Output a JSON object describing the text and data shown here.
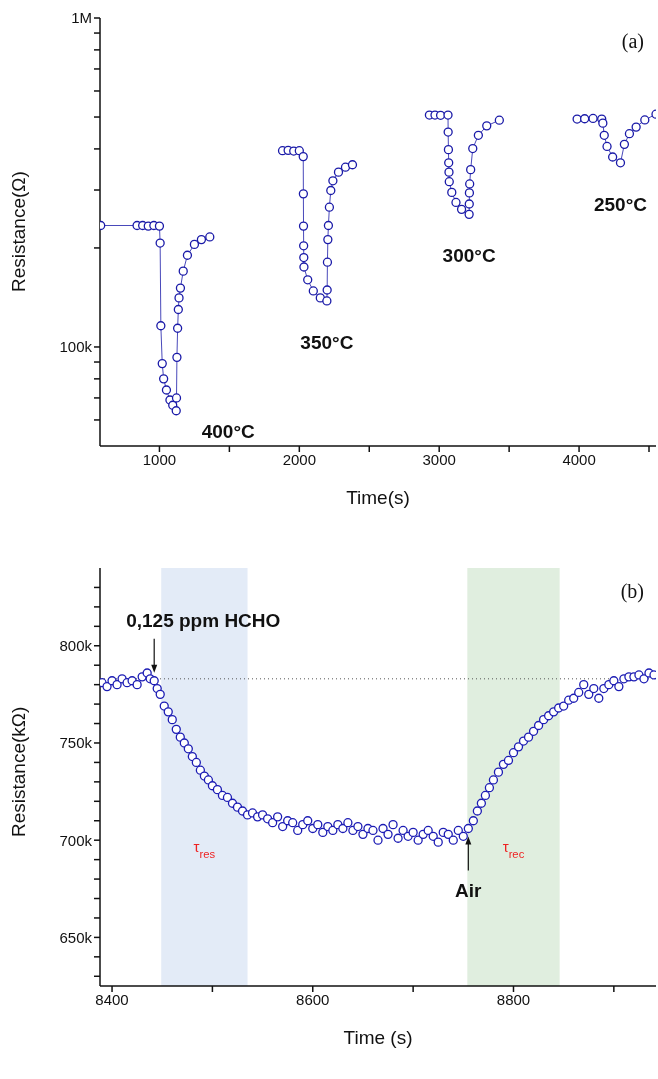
{
  "chart_data": [
    {
      "type": "line",
      "xlabel": "Time(s)",
      "ylabel": "Resistance(Ω)",
      "log": "y",
      "marker": "circle",
      "line_style": "solid",
      "xlim": [
        575,
        4550
      ],
      "xticks": [
        1000,
        {
          "value": 1500,
          "label": null
        },
        2000,
        {
          "value": 2500,
          "label": null
        },
        3000,
        {
          "value": 3500,
          "label": null
        },
        4000,
        {
          "value": 4500,
          "label": null
        }
      ],
      "ylim": [
        50000,
        1000000
      ],
      "yticks": [
        {
          "value": 60000,
          "label": null
        },
        {
          "value": 70000,
          "label": null
        },
        {
          "value": 80000,
          "label": null
        },
        {
          "value": 90000,
          "label": null
        },
        {
          "value": 100000,
          "label": "100k"
        },
        {
          "value": 200000,
          "label": null
        },
        {
          "value": 300000,
          "label": null
        },
        {
          "value": 400000,
          "label": null
        },
        {
          "value": 500000,
          "label": null
        },
        {
          "value": 600000,
          "label": null
        },
        {
          "value": 700000,
          "label": null
        },
        {
          "value": 800000,
          "label": null
        },
        {
          "value": 900000,
          "label": null
        },
        {
          "value": 1000000,
          "label": "1M"
        }
      ],
      "series": [
        {
          "color": "#1a1aa8",
          "x": [
            580,
            840,
            880,
            920,
            960,
            1000,
            1005,
            1010,
            1020,
            1030,
            1050,
            1075,
            1095,
            1120,
            1122,
            1125,
            1130,
            1135,
            1140,
            1150,
            1170,
            1200,
            1250,
            1300,
            1360
          ],
          "values": [
            234000,
            234000,
            234000,
            233000,
            234000,
            233000,
            207000,
            116000,
            89000,
            80000,
            74000,
            69000,
            66500,
            64000,
            70000,
            93000,
            114000,
            130000,
            141000,
            151000,
            170000,
            190000,
            205000,
            212000,
            216000
          ]
        },
        {
          "color": "#1a1aa8",
          "x": [
            1880,
            1920,
            1960,
            2000,
            2028,
            2029,
            2030,
            2031,
            2032,
            2033,
            2060,
            2100,
            2150,
            2197,
            2199,
            2201,
            2204,
            2208,
            2215,
            2225,
            2240,
            2280,
            2330,
            2380
          ],
          "values": [
            395000,
            396000,
            394000,
            395000,
            379000,
            292000,
            233000,
            203000,
            187000,
            175000,
            160000,
            148000,
            141000,
            138000,
            149000,
            181000,
            212000,
            234000,
            266000,
            299000,
            320000,
            340000,
            352000,
            358000
          ]
        },
        {
          "color": "#1a1aa8",
          "x": [
            2930,
            2970,
            3010,
            3063,
            3064,
            3066,
            3068,
            3070,
            3072,
            3090,
            3120,
            3160,
            3214,
            3215,
            3216,
            3218,
            3225,
            3240,
            3280,
            3340,
            3430
          ],
          "values": [
            507000,
            507000,
            506000,
            507000,
            450000,
            398000,
            363000,
            340000,
            318000,
            295000,
            275000,
            262000,
            253000,
            272000,
            294000,
            313000,
            346000,
            401000,
            440000,
            470000,
            489000
          ]
        },
        {
          "color": "#1a1aa8",
          "x": [
            3986,
            4040,
            4100,
            4162,
            4170,
            4180,
            4200,
            4240,
            4296,
            4324,
            4360,
            4408,
            4470,
            4550
          ],
          "values": [
            493000,
            494000,
            495000,
            493000,
            479000,
            440000,
            407000,
            378000,
            363000,
            413000,
            445000,
            466000,
            490000,
            510000
          ]
        }
      ],
      "annotations": [
        "(a)",
        "400°C",
        "350°C",
        "300°C",
        "250°C"
      ]
    },
    {
      "type": "scatter",
      "xlabel": "Time (s)",
      "ylabel": "Resistance(kΩ)",
      "marker": "circle",
      "xlim": [
        8388,
        8942
      ],
      "xticks": [
        8400,
        {
          "value": 8500,
          "label": null
        },
        8600,
        {
          "value": 8700,
          "label": null
        },
        8800,
        {
          "value": 8900,
          "label": null
        }
      ],
      "ylim": [
        625000,
        840000
      ],
      "yticks": [
        {
          "value": 630000,
          "label": null
        },
        {
          "value": 640000,
          "label": null
        },
        {
          "value": 650000,
          "label": "650k"
        },
        {
          "value": 660000,
          "label": null
        },
        {
          "value": 670000,
          "label": null
        },
        {
          "value": 680000,
          "label": null
        },
        {
          "value": 690000,
          "label": null
        },
        {
          "value": 700000,
          "label": "700k"
        },
        {
          "value": 710000,
          "label": null
        },
        {
          "value": 720000,
          "label": null
        },
        {
          "value": 730000,
          "label": null
        },
        {
          "value": 740000,
          "label": null
        },
        {
          "value": 750000,
          "label": "750k"
        },
        {
          "value": 760000,
          "label": null
        },
        {
          "value": 770000,
          "label": null
        },
        {
          "value": 780000,
          "label": null
        },
        {
          "value": 790000,
          "label": null
        },
        {
          "value": 800000,
          "label": "800k"
        },
        {
          "value": 810000,
          "label": null
        },
        {
          "value": 820000,
          "label": null
        },
        {
          "value": 830000,
          "label": null
        }
      ],
      "series": [
        {
          "color": "#1c1cb4",
          "x": [
            8390,
            8395,
            8400,
            8405,
            8410,
            8415,
            8420,
            8425,
            8430,
            8435,
            8438,
            8442,
            8445,
            8448,
            8452,
            8456,
            8460,
            8464,
            8468,
            8472,
            8476,
            8480,
            8484,
            8488,
            8492,
            8496,
            8500,
            8505,
            8510,
            8515,
            8520,
            8525,
            8530,
            8535,
            8540,
            8545,
            8550,
            8555,
            8560,
            8565,
            8570,
            8575,
            8580,
            8585,
            8590,
            8595,
            8600,
            8605,
            8610,
            8615,
            8620,
            8625,
            8630,
            8635,
            8640,
            8645,
            8650,
            8655,
            8660,
            8665,
            8670,
            8675,
            8680,
            8685,
            8690,
            8695,
            8700,
            8705,
            8710,
            8715,
            8720,
            8725,
            8730,
            8735,
            8740,
            8745,
            8750,
            8755,
            8760,
            8764,
            8768,
            8772,
            8776,
            8780,
            8785,
            8790,
            8795,
            8800,
            8805,
            8810,
            8815,
            8820,
            8825,
            8830,
            8835,
            8840,
            8845,
            8850,
            8855,
            8860,
            8865,
            8870,
            8875,
            8880,
            8885,
            8890,
            8895,
            8900,
            8905,
            8910,
            8915,
            8920,
            8925,
            8930,
            8935,
            8940
          ],
          "values": [
            781000,
            779000,
            782000,
            780000,
            783000,
            781000,
            782000,
            780000,
            784000,
            786000,
            783000,
            782000,
            778000,
            775000,
            769000,
            766000,
            762000,
            757000,
            753000,
            750000,
            747000,
            743000,
            740000,
            736000,
            733000,
            731000,
            728000,
            726000,
            723000,
            722000,
            719000,
            717000,
            715000,
            713000,
            714000,
            712000,
            713000,
            711000,
            709000,
            712000,
            707000,
            710000,
            709000,
            705000,
            708000,
            710000,
            706000,
            708000,
            704000,
            707000,
            705000,
            708000,
            706000,
            709000,
            705000,
            707000,
            703000,
            706000,
            705000,
            700000,
            706000,
            703000,
            708000,
            701000,
            705000,
            702000,
            704000,
            700000,
            703000,
            705000,
            702000,
            699000,
            704000,
            703000,
            700000,
            705000,
            702000,
            706000,
            710000,
            715000,
            719000,
            723000,
            727000,
            731000,
            735000,
            739000,
            741000,
            745000,
            748000,
            751000,
            753000,
            756000,
            759000,
            762000,
            764000,
            766000,
            768000,
            769000,
            772000,
            773000,
            776000,
            780000,
            775000,
            778000,
            773000,
            778000,
            780000,
            782000,
            779000,
            783000,
            784000,
            784000,
            785000,
            783000,
            786000,
            785000
          ]
        }
      ],
      "ref_lines": [
        {
          "axis": "y",
          "value": 783000,
          "line_style": "dotted",
          "color": "#555555"
        }
      ],
      "bands": [
        {
          "axis": "x",
          "from": 8449,
          "to": 8535,
          "label": "τ$_{res}$",
          "color": "#e3ebf7"
        },
        {
          "axis": "x",
          "from": 8754,
          "to": 8846,
          "label": "τ$_{rec}$",
          "color": "#e0eedf"
        }
      ],
      "annotations": [
        "(b)",
        {
          "text": "0,125 ppm HCHO",
          "x": 8442,
          "y": 782000
        },
        {
          "text": "Air",
          "x": 8755,
          "y": 706000
        }
      ]
    }
  ]
}
